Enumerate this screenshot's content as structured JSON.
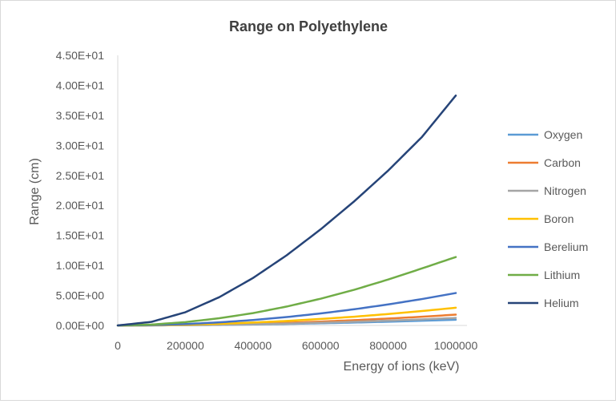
{
  "chart_data": {
    "type": "line",
    "title": "Range on Polyethylene",
    "xlabel": "Energy of ions (keV)",
    "ylabel": "Range (cm)",
    "xlim": [
      0,
      1000000
    ],
    "ylim": [
      0,
      45
    ],
    "x_ticks": [
      "0",
      "200000",
      "400000",
      "600000",
      "800000",
      "1000000"
    ],
    "y_ticks": [
      "0.00E+00",
      "5.00E+00",
      "1.00E+01",
      "1.50E+01",
      "2.00E+01",
      "2.50E+01",
      "3.00E+01",
      "3.50E+01",
      "4.00E+01",
      "4.50E+01"
    ],
    "grid": false,
    "legend_position": "right",
    "x": [
      0,
      100000,
      200000,
      300000,
      400000,
      500000,
      600000,
      700000,
      800000,
      900000,
      1000000
    ],
    "series": [
      {
        "name": "Oxygen",
        "color": "#5b9bd5",
        "values": [
          0,
          0.01,
          0.04,
          0.09,
          0.16,
          0.25,
          0.36,
          0.48,
          0.62,
          0.78,
          0.95
        ]
      },
      {
        "name": "Carbon",
        "color": "#ed7d31",
        "values": [
          0,
          0.02,
          0.07,
          0.16,
          0.28,
          0.44,
          0.64,
          0.88,
          1.15,
          1.45,
          1.8
        ]
      },
      {
        "name": "Nitrogen",
        "color": "#a5a5a5",
        "values": [
          0,
          0.01,
          0.05,
          0.11,
          0.2,
          0.31,
          0.45,
          0.61,
          0.8,
          1.01,
          1.25
        ]
      },
      {
        "name": "Boron",
        "color": "#ffc000",
        "values": [
          0,
          0.03,
          0.12,
          0.27,
          0.48,
          0.75,
          1.08,
          1.46,
          1.9,
          2.4,
          2.95
        ]
      },
      {
        "name": "Berelium",
        "color": "#4472c4",
        "values": [
          0,
          0.06,
          0.23,
          0.51,
          0.9,
          1.4,
          2.0,
          2.7,
          3.5,
          4.4,
          5.4
        ]
      },
      {
        "name": "Lithium",
        "color": "#70ad47",
        "values": [
          0,
          0.15,
          0.55,
          1.2,
          2.05,
          3.15,
          4.45,
          5.95,
          7.65,
          9.5,
          11.4
        ]
      },
      {
        "name": "Helium",
        "color": "#264478",
        "values": [
          0,
          0.6,
          2.2,
          4.7,
          7.9,
          11.7,
          16.0,
          20.7,
          25.8,
          31.4,
          38.3
        ]
      }
    ]
  }
}
